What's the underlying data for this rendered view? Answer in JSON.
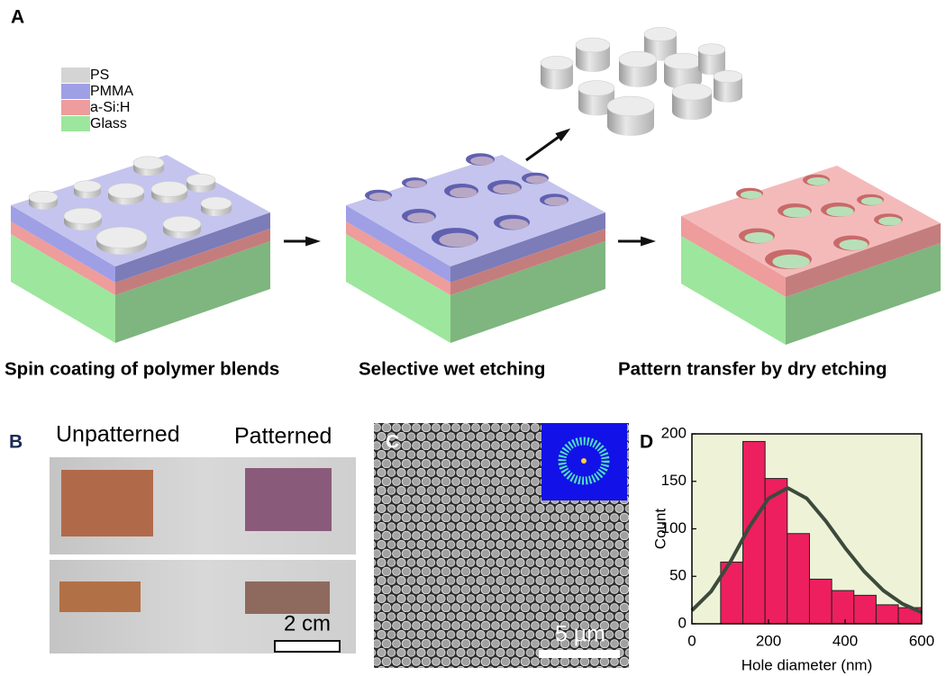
{
  "panel_labels": [
    "A",
    "B",
    "C",
    "D"
  ],
  "legend": [
    "PS",
    "PMMA",
    "a-Si:H",
    "Glass"
  ],
  "captions": [
    "Spin coating of polymer blends",
    "Selective wet etching",
    "Pattern transfer by dry etching"
  ],
  "photo_labels": [
    "Unpatterned",
    "Patterned"
  ],
  "scale_bars": [
    "2 cm",
    "5 µm"
  ],
  "chart_data": {
    "type": "histogram",
    "bins": [
      75,
      133,
      191,
      249,
      307,
      365,
      423,
      481,
      539,
      600
    ],
    "values": [
      65,
      192,
      153,
      95,
      47,
      35,
      30,
      20,
      17
    ],
    "color": "#ee1f5e",
    "fit": {
      "x": [
        0,
        50,
        100,
        150,
        200,
        250,
        300,
        350,
        400,
        450,
        500,
        550,
        600
      ],
      "values": [
        14,
        34,
        65,
        102,
        132,
        143,
        132,
        108,
        80,
        55,
        35,
        21,
        12
      ],
      "color": "#3c4a3c"
    },
    "background": "#eef3d8",
    "xlabel": "Hole diameter (nm)",
    "ylabel": "Count",
    "xlim": [
      0,
      600
    ],
    "ylim": [
      0,
      200
    ],
    "xticks": [
      0,
      200,
      400,
      600
    ],
    "yticks": [
      0,
      50,
      100,
      150,
      200
    ]
  }
}
